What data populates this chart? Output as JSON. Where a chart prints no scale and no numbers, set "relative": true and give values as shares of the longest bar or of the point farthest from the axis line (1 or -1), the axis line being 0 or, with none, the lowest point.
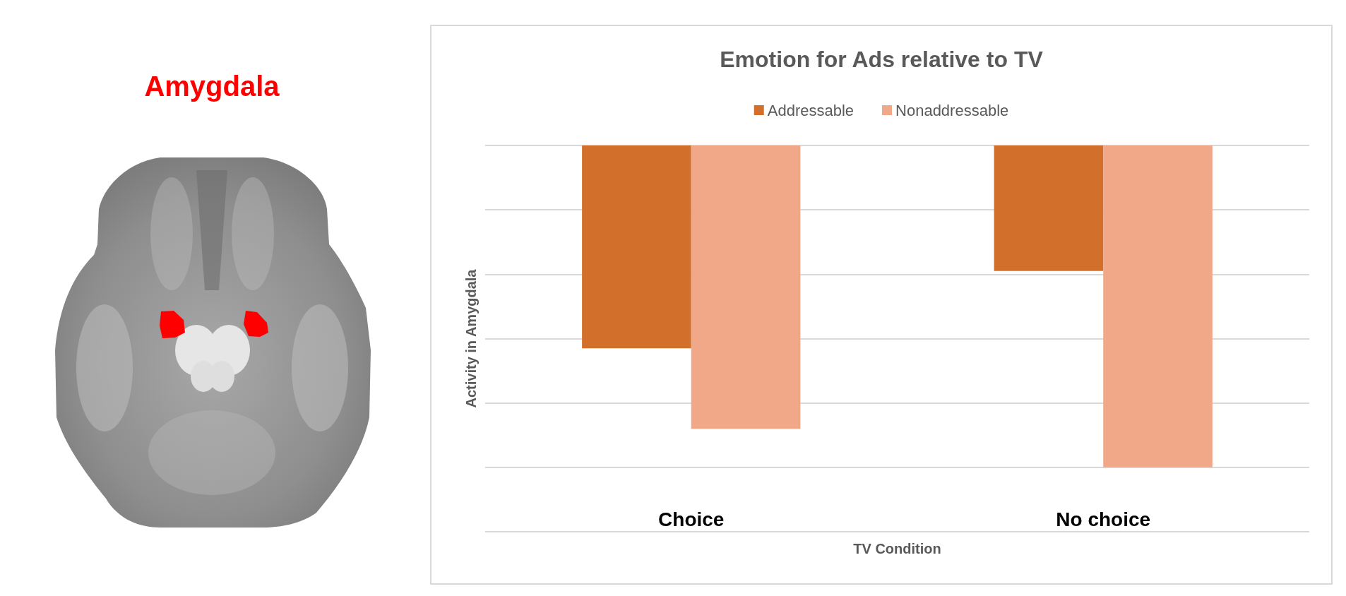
{
  "chart_data": {
    "type": "bar",
    "title": "Emotion for Ads relative to TV",
    "xlabel": "TV Condition",
    "ylabel": "Activity in Amygdala",
    "annotations": [
      "Amygdala"
    ],
    "categories": [
      "Choice",
      "No choice"
    ],
    "series": [
      {
        "name": "Addressable",
        "color": "#d2702b",
        "values": [
          -0.63,
          -0.39
        ]
      },
      {
        "name": "Nonaddressable",
        "color": "#f0a889",
        "values": [
          -0.88,
          -1
        ]
      }
    ],
    "relative": true,
    "grid": "y",
    "legend": "top",
    "tick_labels": "x"
  }
}
